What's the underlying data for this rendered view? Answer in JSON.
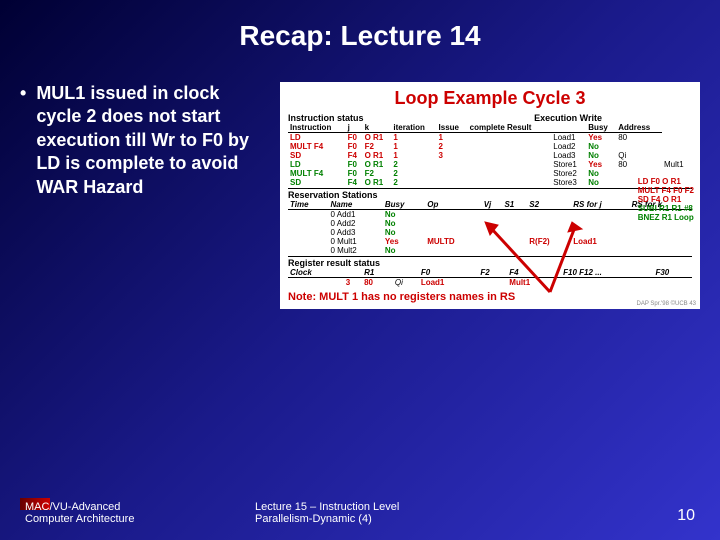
{
  "title": "Recap: Lecture 14",
  "bullet": "MUL1 issued in clock cycle 2 does not start execution till Wr to F0 by LD is complete to avoid WAR Hazard",
  "figure": {
    "title": "Loop Example Cycle 3",
    "sec1_left": "Instruction status",
    "sec1_right": "Execution Write",
    "instr_headers": [
      "Instruction",
      "j",
      "k",
      "iteration",
      "Issue",
      "complete Result",
      "",
      "Busy",
      "Address"
    ],
    "instr_rows": [
      {
        "cells": [
          "LD",
          "F0",
          "O R1",
          "1",
          "1",
          "",
          "Load1",
          "Yes",
          "80"
        ],
        "color": "red"
      },
      {
        "cells": [
          "MULT F4",
          "F0",
          "F2",
          "1",
          "2",
          "",
          "Load2",
          "No",
          ""
        ],
        "color": "red"
      },
      {
        "cells": [
          "SD",
          "F4",
          "O R1",
          "1",
          "3",
          "",
          "Load3",
          "No",
          "Qi"
        ],
        "color": "red"
      },
      {
        "cells": [
          "LD",
          "F0",
          "O R1",
          "2",
          "",
          "",
          "Store1",
          "Yes",
          "80",
          "Mult1"
        ],
        "color": "green"
      },
      {
        "cells": [
          "MULT F4",
          "F0",
          "F2",
          "2",
          "",
          "",
          "Store2",
          "No",
          ""
        ],
        "color": "green"
      },
      {
        "cells": [
          "SD",
          "F4",
          "O R1",
          "2",
          "",
          "",
          "Store3",
          "No",
          ""
        ],
        "color": "green"
      }
    ],
    "rs_label": "Reservation Stations",
    "rs_headers": [
      "Time",
      "Name",
      "Busy",
      "Op",
      "Vj",
      "S1",
      "S2",
      "RS for j",
      "RS for k"
    ],
    "rs_rows": [
      [
        "",
        "0 Add1",
        "No",
        "",
        "",
        "",
        "",
        "",
        ""
      ],
      [
        "",
        "0 Add2",
        "No",
        "",
        "",
        "",
        "",
        "",
        ""
      ],
      [
        "",
        "0 Add3",
        "No",
        "",
        "",
        "",
        "",
        "",
        ""
      ],
      [
        "",
        "0 Mult1",
        "Yes",
        "MULTD",
        "",
        "",
        "R(F2)",
        "Load1",
        ""
      ],
      [
        "",
        "0 Mult2",
        "No",
        "",
        "",
        "",
        "",
        "",
        ""
      ]
    ],
    "code_lines": [
      {
        "t": "LD",
        "a": "F0",
        "b": "O R1",
        "c": "red"
      },
      {
        "t": "MULT",
        "a": "F4",
        "b": "F0 F2",
        "c": "red"
      },
      {
        "t": "SD",
        "a": "F4",
        "b": "O R1",
        "c": "red"
      },
      {
        "t": "SUBI",
        "a": "R1",
        "b": "R1 #8",
        "c": "green"
      },
      {
        "t": "BNEZ",
        "a": "R1",
        "b": "Loop",
        "c": "green"
      }
    ],
    "reg_label": "Register result status",
    "reg_headers": [
      "Clock",
      "",
      "R1",
      "",
      "F0",
      "F2",
      "F4",
      "F10 F12 ...",
      "F30"
    ],
    "reg_row": [
      "",
      "3",
      "80",
      "Qi",
      "Load1",
      "",
      "Mult1",
      "",
      ""
    ],
    "note": "Note: MULT 1 has no registers names in RS",
    "credit": "DAP Spr.'98 ©UCB 43"
  },
  "footer": {
    "left_l1": "MAC/VU-Advanced",
    "left_l2": "Computer Architecture",
    "center_l1": "Lecture 15 – Instruction Level",
    "center_l2": "Parallelism-Dynamic (4)",
    "page": "10"
  },
  "colors": {
    "title_red": "#cc0000",
    "green": "#008000"
  }
}
